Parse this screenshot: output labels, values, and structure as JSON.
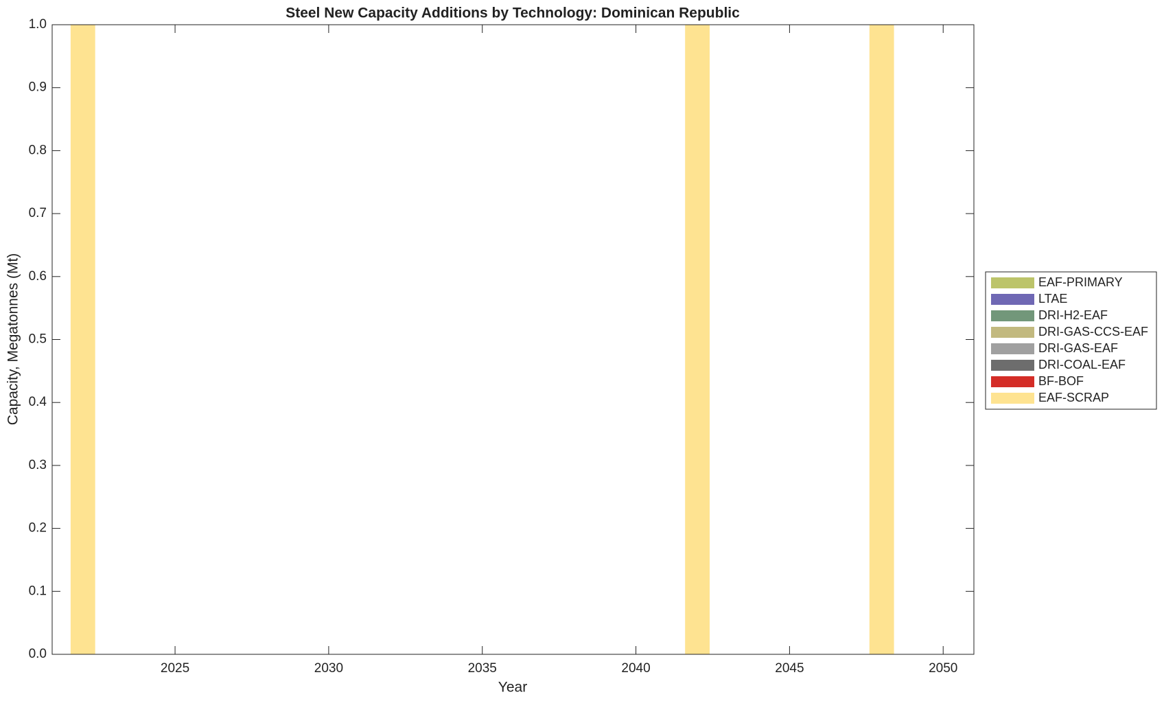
{
  "chart_data": {
    "type": "stacked_bar",
    "title": "Steel New Capacity Additions by Technology: Dominican Republic",
    "x_label": "Year",
    "y_label": "Capacity, Megatonnes (Mt)",
    "x": [
      2022,
      2023,
      2024,
      2025,
      2026,
      2027,
      2028,
      2029,
      2030,
      2031,
      2032,
      2033,
      2034,
      2035,
      2036,
      2037,
      2038,
      2039,
      2040,
      2041,
      2042,
      2043,
      2044,
      2045,
      2046,
      2047,
      2048,
      2049,
      2050
    ],
    "series": [
      {
        "name": "EAF-SCRAP",
        "color": "#fee391",
        "values": [
          1,
          0,
          0,
          0,
          0,
          0,
          0,
          0,
          0,
          0,
          0,
          0,
          0,
          0,
          0,
          0,
          0,
          0,
          0,
          0,
          1,
          0,
          0,
          0,
          0,
          0,
          1,
          0,
          0
        ]
      },
      {
        "name": "BF-BOF",
        "color": "#d42d27",
        "values": [
          0,
          0,
          0,
          0,
          0,
          0,
          0,
          0,
          0,
          0,
          0,
          0,
          0,
          0,
          0,
          0,
          0,
          0,
          0,
          0,
          0,
          0,
          0,
          0,
          0,
          0,
          0,
          0,
          0
        ]
      },
      {
        "name": "DRI-COAL-EAF",
        "color": "#6d6d6d",
        "values": [
          0,
          0,
          0,
          0,
          0,
          0,
          0,
          0,
          0,
          0,
          0,
          0,
          0,
          0,
          0,
          0,
          0,
          0,
          0,
          0,
          0,
          0,
          0,
          0,
          0,
          0,
          0,
          0,
          0
        ]
      },
      {
        "name": "DRI-GAS-EAF",
        "color": "#a0a0a0",
        "values": [
          0,
          0,
          0,
          0,
          0,
          0,
          0,
          0,
          0,
          0,
          0,
          0,
          0,
          0,
          0,
          0,
          0,
          0,
          0,
          0,
          0,
          0,
          0,
          0,
          0,
          0,
          0,
          0,
          0
        ]
      },
      {
        "name": "DRI-GAS-CCS-EAF",
        "color": "#c2b97f",
        "values": [
          0,
          0,
          0,
          0,
          0,
          0,
          0,
          0,
          0,
          0,
          0,
          0,
          0,
          0,
          0,
          0,
          0,
          0,
          0,
          0,
          0,
          0,
          0,
          0,
          0,
          0,
          0,
          0,
          0
        ]
      },
      {
        "name": "DRI-H2-EAF",
        "color": "#72977a",
        "values": [
          0,
          0,
          0,
          0,
          0,
          0,
          0,
          0,
          0,
          0,
          0,
          0,
          0,
          0,
          0,
          0,
          0,
          0,
          0,
          0,
          0,
          0,
          0,
          0,
          0,
          0,
          0,
          0,
          0
        ]
      },
      {
        "name": "LTAE",
        "color": "#6f68b4",
        "values": [
          0,
          0,
          0,
          0,
          0,
          0,
          0,
          0,
          0,
          0,
          0,
          0,
          0,
          0,
          0,
          0,
          0,
          0,
          0,
          0,
          0,
          0,
          0,
          0,
          0,
          0,
          0,
          0,
          0
        ]
      },
      {
        "name": "EAF-PRIMARY",
        "color": "#bcc46a",
        "values": [
          0,
          0,
          0,
          0,
          0,
          0,
          0,
          0,
          0,
          0,
          0,
          0,
          0,
          0,
          0,
          0,
          0,
          0,
          0,
          0,
          0,
          0,
          0,
          0,
          0,
          0,
          0,
          0,
          0
        ]
      }
    ],
    "xlim": [
      2021,
      2051
    ],
    "xticks": [
      2025,
      2030,
      2035,
      2040,
      2045,
      2050
    ],
    "ylim": [
      0,
      1
    ],
    "yticks": [
      {
        "value": 0,
        "label": "0.0"
      },
      0.1,
      0.2,
      0.3,
      0.4,
      0.5,
      0.6,
      0.7,
      0.8,
      0.9,
      {
        "value": 1,
        "label": "1.0"
      }
    ],
    "grid": false,
    "legend": "outside-right"
  }
}
